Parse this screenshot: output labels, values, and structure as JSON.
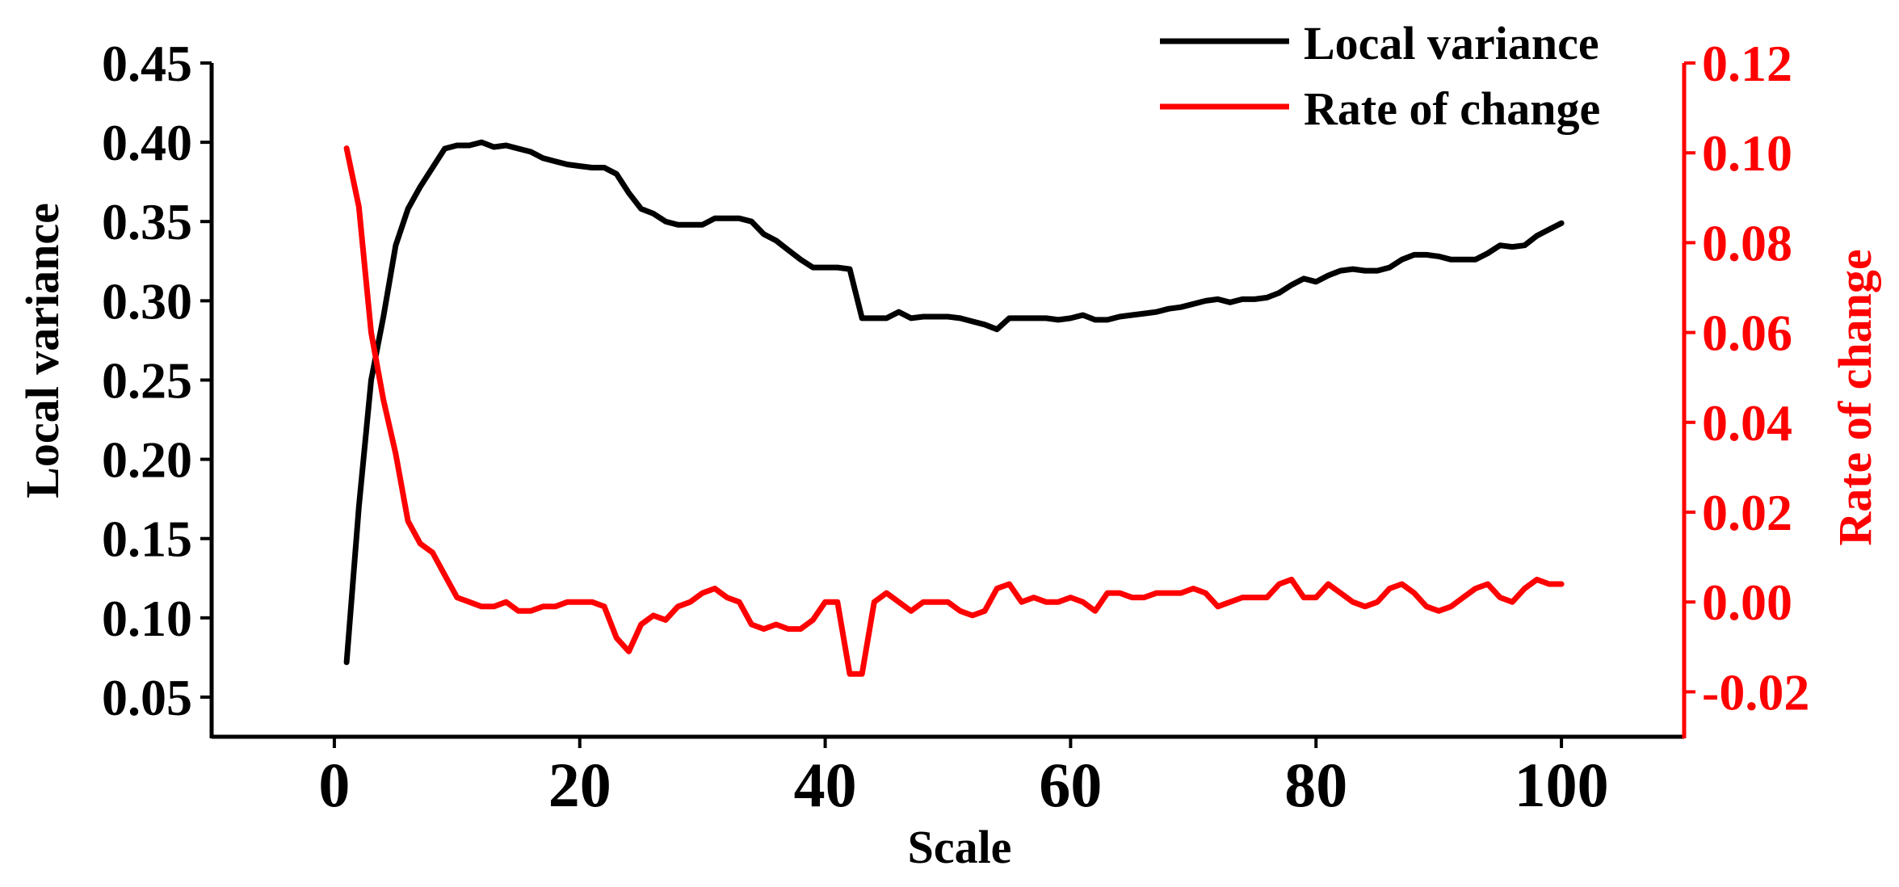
{
  "chart_data": {
    "type": "line",
    "xlabel": "Scale",
    "ylabel": "Local variance",
    "y2label": "Rate of change",
    "xlim": [
      -10,
      110
    ],
    "ylim": [
      0.025,
      0.45
    ],
    "y2lim": [
      -0.03,
      0.12
    ],
    "xticks": [
      0,
      20,
      40,
      60,
      80,
      100
    ],
    "yticks": [
      0.05,
      0.1,
      0.15,
      0.2,
      0.25,
      0.3,
      0.35,
      0.4,
      0.45
    ],
    "y2ticks": [
      -0.02,
      0.0,
      0.02,
      0.04,
      0.06,
      0.08,
      0.1,
      0.12
    ],
    "xtick_labels": [
      "0",
      "20",
      "40",
      "60",
      "80",
      "100"
    ],
    "ytick_labels": [
      "0.05",
      "0.10",
      "0.15",
      "0.20",
      "0.25",
      "0.30",
      "0.35",
      "0.40",
      "0.45"
    ],
    "y2tick_labels": [
      "-0.02",
      "0.00",
      "0.02",
      "0.04",
      "0.06",
      "0.08",
      "0.10",
      "0.12"
    ],
    "grid": false,
    "legend_position": "top-right",
    "series": [
      {
        "name": "Local variance",
        "axis": "left",
        "color": "#000000",
        "x": [
          1,
          2,
          3,
          4,
          5,
          6,
          7,
          8,
          9,
          10,
          11,
          12,
          13,
          14,
          15,
          16,
          17,
          18,
          19,
          20,
          21,
          22,
          23,
          24,
          25,
          26,
          27,
          28,
          29,
          30,
          31,
          32,
          33,
          34,
          35,
          36,
          37,
          38,
          39,
          40,
          41,
          42,
          43,
          44,
          45,
          46,
          47,
          48,
          49,
          50,
          51,
          52,
          53,
          54,
          55,
          56,
          57,
          58,
          59,
          60,
          61,
          62,
          63,
          64,
          65,
          66,
          67,
          68,
          69,
          70,
          71,
          72,
          73,
          74,
          75,
          76,
          77,
          78,
          79,
          80,
          81,
          82,
          83,
          84,
          85,
          86,
          87,
          88,
          89,
          90,
          91,
          92,
          93,
          94,
          95,
          96,
          97,
          98,
          99,
          100
        ],
        "values": [
          0.072,
          0.17,
          0.25,
          0.29,
          0.335,
          0.358,
          0.372,
          0.384,
          0.396,
          0.398,
          0.398,
          0.4,
          0.397,
          0.398,
          0.396,
          0.394,
          0.39,
          0.388,
          0.386,
          0.385,
          0.384,
          0.384,
          0.38,
          0.368,
          0.358,
          0.355,
          0.35,
          0.348,
          0.348,
          0.348,
          0.352,
          0.352,
          0.352,
          0.35,
          0.342,
          0.338,
          0.332,
          0.326,
          0.321,
          0.321,
          0.321,
          0.32,
          0.289,
          0.289,
          0.289,
          0.293,
          0.289,
          0.29,
          0.29,
          0.29,
          0.289,
          0.287,
          0.285,
          0.282,
          0.289,
          0.289,
          0.289,
          0.289,
          0.288,
          0.289,
          0.291,
          0.288,
          0.288,
          0.29,
          0.291,
          0.292,
          0.293,
          0.295,
          0.296,
          0.298,
          0.3,
          0.301,
          0.299,
          0.301,
          0.301,
          0.302,
          0.305,
          0.31,
          0.314,
          0.312,
          0.316,
          0.319,
          0.32,
          0.319,
          0.319,
          0.321,
          0.326,
          0.329,
          0.329,
          0.328,
          0.326,
          0.326,
          0.326,
          0.33,
          0.335,
          0.334,
          0.335,
          0.341,
          0.345,
          0.349
        ]
      },
      {
        "name": "Rate of change",
        "axis": "right",
        "color": "#ff0000",
        "x": [
          1,
          2,
          3,
          4,
          5,
          6,
          7,
          8,
          9,
          10,
          11,
          12,
          13,
          14,
          15,
          16,
          17,
          18,
          19,
          20,
          21,
          22,
          23,
          24,
          25,
          26,
          27,
          28,
          29,
          30,
          31,
          32,
          33,
          34,
          35,
          36,
          37,
          38,
          39,
          40,
          41,
          42,
          43,
          44,
          45,
          46,
          47,
          48,
          49,
          50,
          51,
          52,
          53,
          54,
          55,
          56,
          57,
          58,
          59,
          60,
          61,
          62,
          63,
          64,
          65,
          66,
          67,
          68,
          69,
          70,
          71,
          72,
          73,
          74,
          75,
          76,
          77,
          78,
          79,
          80,
          81,
          82,
          83,
          84,
          85,
          86,
          87,
          88,
          89,
          90,
          91,
          92,
          93,
          94,
          95,
          96,
          97,
          98,
          99,
          100
        ],
        "values": [
          0.101,
          0.088,
          0.06,
          0.045,
          0.033,
          0.018,
          0.013,
          0.011,
          0.006,
          0.001,
          0.0,
          -0.001,
          -0.001,
          0.0,
          -0.002,
          -0.002,
          -0.001,
          -0.001,
          0.0,
          0.0,
          0.0,
          -0.001,
          -0.008,
          -0.011,
          -0.005,
          -0.003,
          -0.004,
          -0.001,
          0.0,
          0.002,
          0.003,
          0.001,
          0.0,
          -0.005,
          -0.006,
          -0.005,
          -0.006,
          -0.006,
          -0.004,
          0.0,
          0.0,
          -0.016,
          -0.016,
          0.0,
          0.002,
          0.0,
          -0.002,
          0.0,
          0.0,
          0.0,
          -0.002,
          -0.003,
          -0.002,
          0.003,
          0.004,
          0.0,
          0.001,
          0.0,
          0.0,
          0.001,
          0.0,
          -0.002,
          0.002,
          0.002,
          0.001,
          0.001,
          0.002,
          0.002,
          0.002,
          0.003,
          0.002,
          -0.001,
          0.0,
          0.001,
          0.001,
          0.001,
          0.004,
          0.005,
          0.001,
          0.001,
          0.004,
          0.002,
          0.0,
          -0.001,
          0.0,
          0.003,
          0.004,
          0.002,
          -0.001,
          -0.002,
          -0.001,
          0.001,
          0.003,
          0.004,
          0.001,
          0.0,
          0.003,
          0.005,
          0.004,
          0.004
        ]
      }
    ]
  }
}
